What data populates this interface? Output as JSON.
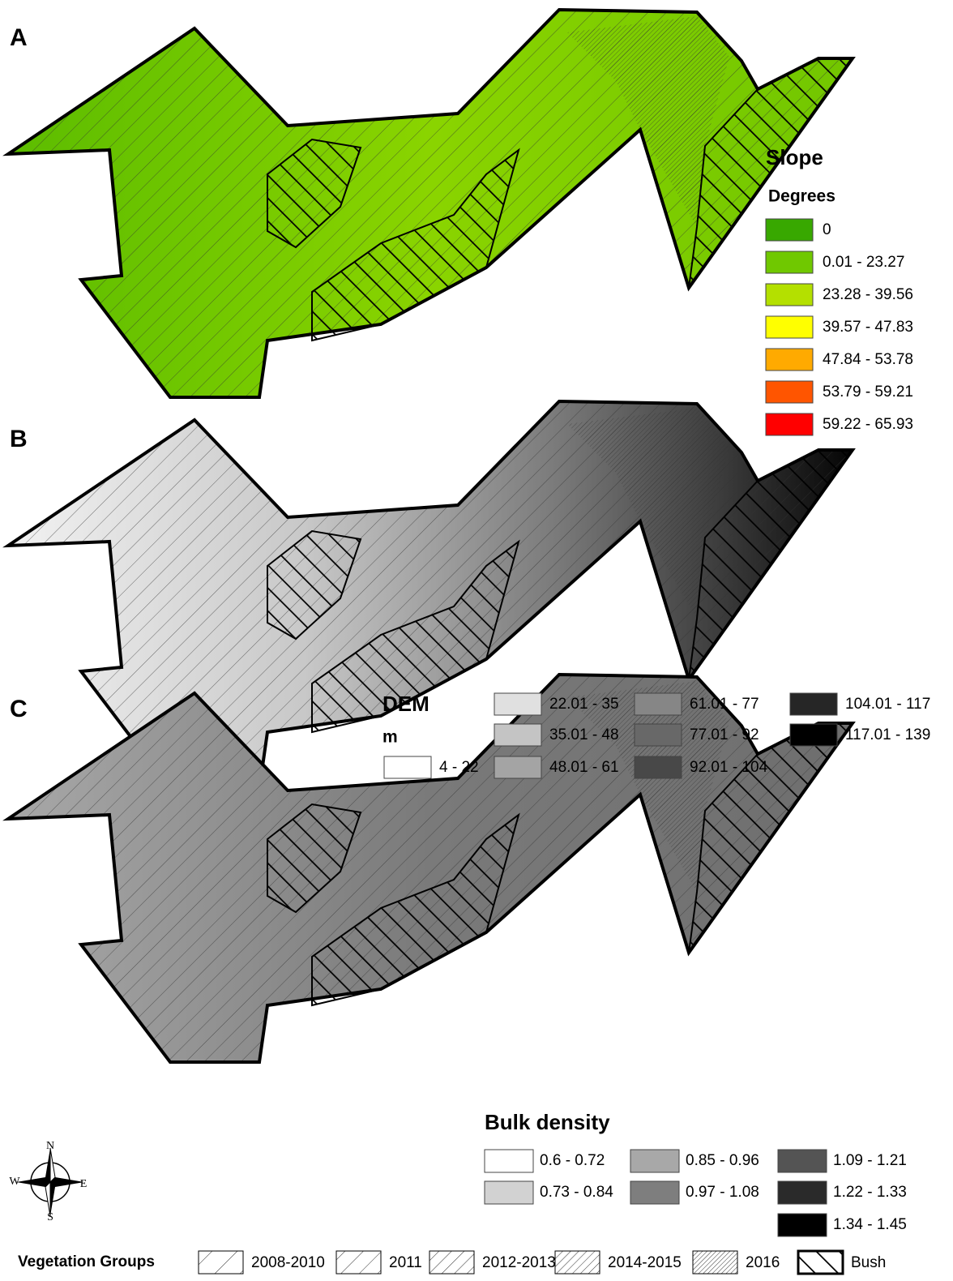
{
  "panels": [
    {
      "label": "A",
      "legend": {
        "title": "Slope",
        "unit": "Degrees",
        "items": [
          {
            "label": "0",
            "color": "#38a800"
          },
          {
            "label": "0.01 - 23.27",
            "color": "#70c800"
          },
          {
            "label": "23.28 - 39.56",
            "color": "#b4e000"
          },
          {
            "label": "39.57 - 47.83",
            "color": "#ffff00"
          },
          {
            "label": "47.84 - 53.78",
            "color": "#ffaa00"
          },
          {
            "label": "53.79 - 59.21",
            "color": "#ff5500"
          },
          {
            "label": "59.22 - 65.93",
            "color": "#ff0000"
          }
        ]
      }
    },
    {
      "label": "B",
      "legend": {
        "title": "DEM",
        "unit": "m",
        "items": [
          {
            "label": "4 - 22",
            "color": "#ffffff"
          },
          {
            "label": "22.01 - 35",
            "color": "#e0e0e0"
          },
          {
            "label": "35.01 - 48",
            "color": "#c4c4c4"
          },
          {
            "label": "48.01 - 61",
            "color": "#a4a4a4"
          },
          {
            "label": "61.01 - 77",
            "color": "#868686"
          },
          {
            "label": "77.01 - 92",
            "color": "#686868"
          },
          {
            "label": "92.01 - 104",
            "color": "#484848"
          },
          {
            "label": "104.01 - 117",
            "color": "#262626"
          },
          {
            "label": "117.01 - 139",
            "color": "#000000"
          }
        ]
      }
    },
    {
      "label": "C",
      "legend": {
        "title": "Bulk density",
        "items": [
          {
            "label": "0.6 - 0.72",
            "color": "#ffffff"
          },
          {
            "label": "0.73 - 0.84",
            "color": "#d2d2d2"
          },
          {
            "label": "0.85 - 0.96",
            "color": "#a8a8a8"
          },
          {
            "label": "0.97 - 1.08",
            "color": "#7e7e7e"
          },
          {
            "label": "1.09 - 1.21",
            "color": "#545454"
          },
          {
            "label": "1.22 - 1.33",
            "color": "#2a2a2a"
          },
          {
            "label": "1.34 - 1.45",
            "color": "#000000"
          }
        ]
      }
    }
  ],
  "compass": {
    "north": "N",
    "east": "E",
    "south": "S",
    "west": "W"
  },
  "vegetation_legend": {
    "title": "Vegetation Groups",
    "items": [
      "2008-2010",
      "2011",
      "2012-2013",
      "2014-2015",
      "2016",
      "Bush"
    ]
  }
}
